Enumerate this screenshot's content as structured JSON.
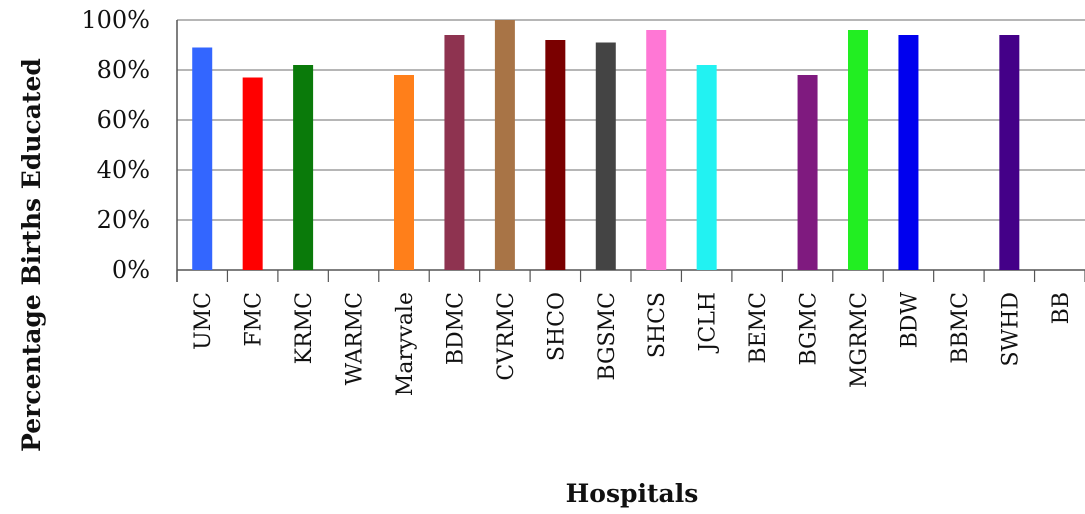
{
  "chart_data": {
    "type": "bar",
    "xlabel": "Hospitals",
    "ylabel": "Percentage Births Educated",
    "ylim": [
      0,
      100
    ],
    "yticks": [
      "0%",
      "20%",
      "40%",
      "60%",
      "80%",
      "100%"
    ],
    "grid": true,
    "legend": "none",
    "categories": [
      "UMC",
      "FMC",
      "KRMC",
      "WARMC",
      "Maryvale",
      "BDMC",
      "CVRMC",
      "SHCO",
      "BGSMC",
      "SHCS",
      "JCLH",
      "BEMC",
      "BGMC",
      "MGRMC",
      "BDW",
      "BBMC",
      "SWHD",
      "BB"
    ],
    "values": [
      89,
      77,
      82,
      0,
      78,
      94,
      100,
      92,
      91,
      96,
      82,
      0,
      78,
      96,
      94,
      0,
      94,
      0
    ],
    "colors": [
      "#3366ff",
      "#ff0000",
      "#0a7a0a",
      "#cccccc",
      "#ff7f1a",
      "#8e3350",
      "#a87446",
      "#7a0000",
      "#444444",
      "#ff77d5",
      "#22f2f2",
      "#cccccc",
      "#7f1a7f",
      "#22ee22",
      "#0000ee",
      "#cccccc",
      "#440088",
      "#cccccc"
    ]
  }
}
